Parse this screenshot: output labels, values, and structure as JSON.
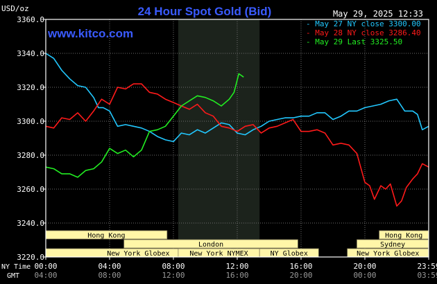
{
  "header": {
    "currency": "USD/oz",
    "title": "24 Hour Spot Gold (Bid)",
    "date": "May 29, 2025 12:33",
    "website": "www.kitco.com"
  },
  "colors": {
    "background": "#000000",
    "axis": "#ffffff",
    "grid": "#6f6f6f",
    "title": "#3a5bff",
    "website": "#3a5bff",
    "session_fill": "#fff6a8",
    "session_text": "#000000",
    "shade": "#1c231c"
  },
  "chart_data": {
    "type": "line",
    "title": "24 Hour Spot Gold (Bid)",
    "ylabel": "USD/oz",
    "ylim": [
      3220,
      3360
    ],
    "yticks": [
      "3360.0",
      "3340.0",
      "3320.0",
      "3300.0",
      "3280.0",
      "3260.0",
      "3240.0",
      "3220.0"
    ],
    "yvals": [
      3360,
      3340,
      3320,
      3300,
      3280,
      3260,
      3240,
      3220
    ],
    "xlim": [
      0,
      24
    ],
    "xtick_hours": [
      0,
      4,
      8,
      12,
      16,
      20,
      24
    ],
    "xticks_ny": [
      "00:00",
      "04:00",
      "08:00",
      "12:00",
      "16:00",
      "20:00",
      "23:59"
    ],
    "xticks_gmt": [
      "04:00",
      "08:00",
      "12:00",
      "16:00",
      "20:00",
      "00:00",
      "03:59"
    ],
    "x_row_label_ny": "NY Time",
    "x_row_label_gmt": "GMT",
    "highlight_hours": [
      8.3,
      13.4
    ],
    "legend": [
      {
        "label": "May 27 NY close 3300.00",
        "color": "#22c8ff"
      },
      {
        "label": "May 28 NY close 3286.40",
        "color": "#ff1a1a"
      },
      {
        "label": "May 29 Last 3325.50",
        "color": "#22ee22"
      }
    ],
    "series": [
      {
        "name": "May 27 NY close 3300.00",
        "color": "#22c8ff",
        "x": [
          0,
          0.5,
          1,
          1.5,
          2,
          2.5,
          3,
          3.3,
          3.6,
          4,
          4.5,
          5,
          5.5,
          6,
          6.5,
          7,
          7.5,
          8,
          8.5,
          9,
          9.5,
          10,
          10.5,
          11,
          11.5,
          12,
          12.5,
          13,
          13.5,
          14,
          14.5,
          15,
          15.5,
          16,
          16.5,
          17,
          17.5,
          18,
          18.5,
          19,
          19.5,
          20,
          20.5,
          21,
          21.5,
          22,
          22.5,
          23,
          23.3,
          23.6,
          24
        ],
        "y": [
          3340,
          3337,
          3330,
          3325,
          3321,
          3320,
          3314,
          3308,
          3308,
          3306,
          3297,
          3298,
          3297,
          3296,
          3294,
          3291,
          3289,
          3288,
          3293,
          3292,
          3295,
          3293,
          3296,
          3299,
          3298,
          3293,
          3292,
          3295,
          3297,
          3300,
          3301,
          3302,
          3302,
          3303,
          3303,
          3305,
          3305,
          3301,
          3303,
          3306,
          3306,
          3308,
          3309,
          3310,
          3312,
          3313,
          3306,
          3306,
          3304,
          3295,
          3297
        ]
      },
      {
        "name": "May 28 NY close 3286.40",
        "color": "#ff1a1a",
        "x": [
          0,
          0.5,
          1,
          1.5,
          2,
          2.5,
          3,
          3.5,
          4,
          4.5,
          5,
          5.5,
          6,
          6.5,
          7,
          7.5,
          8,
          8.5,
          9,
          9.5,
          10,
          10.5,
          11,
          11.5,
          12,
          12.5,
          13,
          13.5,
          14,
          14.5,
          15,
          15.5,
          16,
          16.5,
          17,
          17.5,
          18,
          18.5,
          19,
          19.5,
          20,
          20.3,
          20.6,
          21,
          21.3,
          21.6,
          22,
          22.3,
          22.6,
          23,
          23.3,
          23.6,
          24
        ],
        "y": [
          3297,
          3296,
          3302,
          3301,
          3305,
          3300,
          3306,
          3313,
          3310,
          3320,
          3319,
          3322,
          3322,
          3317,
          3316,
          3313,
          3311,
          3309,
          3307,
          3310,
          3305,
          3303,
          3297,
          3296,
          3294,
          3297,
          3298,
          3293,
          3296,
          3297,
          3299,
          3301,
          3294,
          3294,
          3295,
          3293,
          3286,
          3287,
          3286,
          3281,
          3264,
          3262,
          3254,
          3262,
          3260,
          3263,
          3250,
          3253,
          3261,
          3266,
          3269,
          3275,
          3273
        ]
      },
      {
        "name": "May 29 Last 3325.50",
        "color": "#22ee22",
        "x": [
          0,
          0.5,
          1,
          1.5,
          2,
          2.5,
          3,
          3.5,
          4,
          4.5,
          5,
          5.5,
          6,
          6.5,
          7,
          7.5,
          8,
          8.5,
          9,
          9.5,
          10,
          10.5,
          11,
          11.5,
          11.8,
          12.1,
          12.4
        ],
        "y": [
          3273,
          3272,
          3269,
          3269,
          3267,
          3271,
          3272,
          3276,
          3284,
          3281,
          3283,
          3279,
          3283,
          3294,
          3295,
          3297,
          3303,
          3309,
          3312,
          3315,
          3314,
          3312,
          3309,
          3313,
          3317,
          3328,
          3326
        ]
      }
    ]
  },
  "sessions": [
    {
      "label": "Hong Kong",
      "start": 0,
      "end": 7.6,
      "row": 0
    },
    {
      "label": "London",
      "start": 4.9,
      "end": 15.8,
      "row": 1
    },
    {
      "label": "New York Globex",
      "start": 0,
      "end": 11.6,
      "row": 2
    },
    {
      "label": "New York NYMEX",
      "start": 8.3,
      "end": 13.4,
      "row": 2
    },
    {
      "label": "NY Globex",
      "start": 13.4,
      "end": 17.1,
      "row": 2
    },
    {
      "label": "Hong Kong",
      "start": 20.9,
      "end": 23.99,
      "row": 0
    },
    {
      "label": "Sydney",
      "start": 19.5,
      "end": 23.99,
      "row": 1
    },
    {
      "label": "New York Globex",
      "start": 18.9,
      "end": 23.99,
      "row": 2
    }
  ]
}
